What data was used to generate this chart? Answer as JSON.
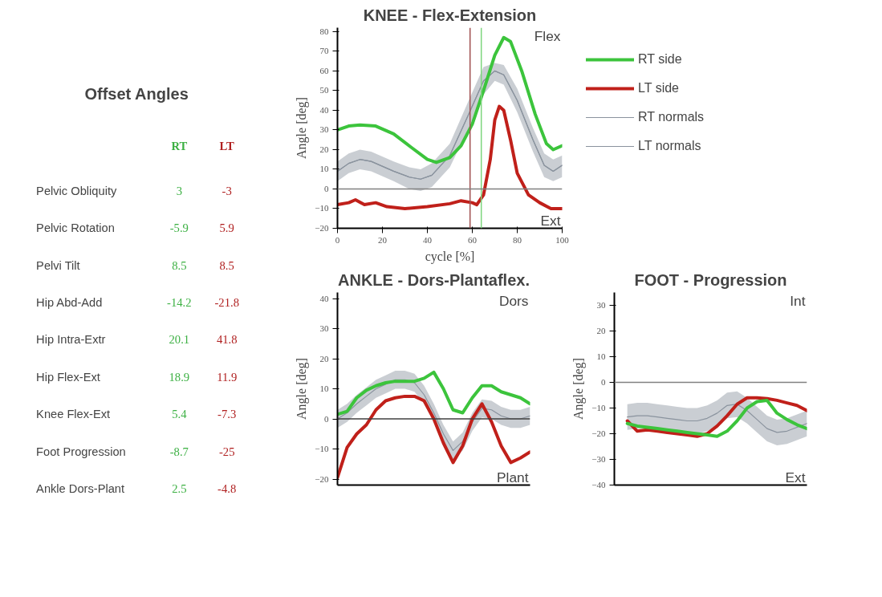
{
  "chart_data": [
    {
      "type": "other",
      "title": "Offset Angles",
      "categories": [
        "Pelvic Obliquity",
        "Pelvic Rotation",
        "Pelvi Tilt",
        "Hip Abd-Add",
        "Hip Intra-Extr",
        "Hip Flex-Ext",
        "Knee Flex-Ext",
        "Foot Progression",
        "Ankle Dors-Plant"
      ],
      "series": [
        {
          "name": "RT",
          "color": "#3cb043",
          "values": [
            3,
            -5.9,
            8.5,
            -14.2,
            20.1,
            18.9,
            5.4,
            -8.7,
            2.5
          ]
        },
        {
          "name": "LT",
          "color": "#b02020",
          "values": [
            -3,
            5.9,
            8.5,
            -21.8,
            41.8,
            11.9,
            -7.3,
            -25,
            -4.8
          ]
        }
      ],
      "data_labels": true
    },
    {
      "type": "line",
      "title": "KNEE - Flex-Extension",
      "xlabel": "cycle [%]",
      "ylabel": "Angle [deg]",
      "xlim": [
        0,
        100
      ],
      "ylim": [
        -20,
        82
      ],
      "xticks": [
        0,
        20,
        40,
        60,
        80,
        100
      ],
      "yticks": [
        -20,
        -10,
        0,
        10,
        20,
        30,
        40,
        50,
        60,
        70,
        80
      ],
      "grid": false,
      "legend": "right",
      "annotations": [
        "Flex",
        "Ext"
      ],
      "ref_lines": [
        {
          "axis": "x",
          "value": 59,
          "color": "#a05050"
        },
        {
          "axis": "x",
          "value": 64,
          "color": "#7ed67e"
        },
        {
          "axis": "y",
          "value": 0,
          "color": "#808080"
        }
      ],
      "series": [
        {
          "name": "RT side",
          "color": "#3cc43c",
          "x": [
            0,
            5,
            10,
            17,
            25,
            33,
            40,
            44,
            50,
            55,
            60,
            65,
            70,
            74,
            77,
            82,
            88,
            93,
            96,
            100
          ],
          "values": [
            30,
            32,
            32.5,
            32,
            28,
            21,
            15,
            13.5,
            16,
            22,
            33,
            50,
            68,
            77,
            75,
            60,
            38,
            23,
            20,
            22
          ]
        },
        {
          "name": "LT side",
          "color": "#c0201a",
          "x": [
            0,
            5,
            8,
            12,
            17,
            22,
            30,
            40,
            50,
            55,
            60,
            62,
            65,
            68,
            70,
            72,
            74,
            77,
            80,
            85,
            90,
            95,
            100
          ],
          "values": [
            -8,
            -7,
            -5.5,
            -8,
            -7,
            -9,
            -10,
            -9,
            -7.5,
            -6,
            -7,
            -8,
            -3,
            15,
            35,
            42,
            40,
            25,
            8,
            -3,
            -7,
            -10,
            -10
          ]
        },
        {
          "name": "RT normals",
          "color": "#8a939e",
          "x": [
            0,
            5,
            10,
            15,
            25,
            32,
            37,
            42,
            50,
            58,
            65,
            70,
            74,
            80,
            87,
            92,
            96,
            100
          ],
          "values": [
            9,
            13,
            15,
            14,
            9,
            6,
            5,
            7,
            17,
            37,
            55,
            60,
            58,
            45,
            25,
            12,
            9,
            12
          ],
          "lower": [
            4,
            8,
            10,
            9,
            4,
            0,
            -1,
            1,
            11,
            30,
            48,
            55,
            53,
            39,
            19,
            6,
            4,
            6
          ],
          "upper": [
            14,
            18,
            20,
            19,
            14,
            11,
            10,
            13,
            23,
            44,
            62,
            64,
            63,
            51,
            31,
            18,
            15,
            17
          ]
        },
        {
          "name": "LT normals",
          "color": "#8a939e",
          "x": [
            0,
            5,
            10,
            15,
            25,
            32,
            37,
            42,
            50,
            58,
            65,
            70,
            74,
            80,
            87,
            92,
            96,
            100
          ],
          "values": [
            9,
            13,
            15,
            14,
            9,
            6,
            5,
            7,
            17,
            37,
            55,
            60,
            58,
            45,
            25,
            12,
            9,
            12
          ]
        }
      ]
    },
    {
      "type": "line",
      "title": "ANKLE - Dors-Plantaflex.",
      "ylabel": "Angle [deg]",
      "categories": [
        null,
        null,
        null,
        null,
        null,
        null,
        null,
        null,
        null,
        null,
        null,
        null,
        null,
        null,
        null,
        null,
        null,
        null,
        null,
        null,
        null
      ],
      "ylim": [
        -22,
        42
      ],
      "yticks": [
        -20,
        -10,
        0,
        10,
        20,
        30,
        40
      ],
      "tick_labels": "y",
      "grid": false,
      "annotations": [
        "Dors",
        "Plant"
      ],
      "ref_lines": [
        {
          "axis": "y",
          "value": 0,
          "color": "#404040"
        }
      ],
      "series": [
        {
          "color": "#3cc43c",
          "values": [
            1.5,
            2.5,
            7,
            9.5,
            11,
            12,
            12.5,
            12.5,
            12.5,
            13.5,
            15.5,
            10,
            3,
            2,
            7,
            11,
            11,
            9,
            8,
            7,
            5
          ]
        },
        {
          "color": "#c0201a",
          "values": [
            -19.5,
            -9.5,
            -5,
            -2,
            3,
            6,
            7,
            7.5,
            7.5,
            6,
            0,
            -8,
            -14.5,
            -9,
            0,
            5,
            -1,
            -9,
            -14.5,
            -13,
            -11
          ]
        },
        {
          "color": "#8a939e",
          "values": [
            0,
            2,
            5,
            7.5,
            10,
            11.5,
            13,
            13,
            12,
            8,
            2,
            -5,
            -10.5,
            -7.5,
            -1,
            3.5,
            3,
            1,
            0,
            0,
            1
          ],
          "lower": [
            -3,
            -1,
            2,
            4.5,
            7,
            8.5,
            10,
            10,
            9,
            5,
            -1,
            -8,
            -13.5,
            -10.5,
            -4,
            0.5,
            0,
            -2,
            -3,
            -3,
            -2
          ],
          "upper": [
            3,
            5,
            8,
            10.5,
            13,
            14.5,
            16,
            16,
            15,
            11,
            5,
            -2,
            -7.5,
            -4.5,
            2,
            6.5,
            6,
            4,
            3,
            3,
            4
          ]
        }
      ]
    },
    {
      "type": "line",
      "title": "FOOT - Progression",
      "ylabel": "Angle [deg]",
      "categories": [
        null,
        null,
        null,
        null,
        null,
        null,
        null,
        null,
        null,
        null,
        null,
        null,
        null,
        null,
        null,
        null,
        null,
        null,
        null
      ],
      "ylim": [
        -40,
        35
      ],
      "yticks": [
        -40,
        -30,
        -20,
        -10,
        0,
        10,
        20,
        30
      ],
      "tick_labels": "y",
      "grid": false,
      "annotations": [
        "Int",
        "Ext"
      ],
      "ref_lines": [
        {
          "axis": "y",
          "value": 0,
          "color": "#808080"
        }
      ],
      "series": [
        {
          "color": "#3cc43c",
          "values": [
            -16,
            -17,
            -17.5,
            -18,
            -18.5,
            -19,
            -19.5,
            -20,
            -20.5,
            -21,
            -19,
            -15,
            -10,
            -7.5,
            -7,
            -12,
            -14.5,
            -16.5,
            -18
          ]
        },
        {
          "color": "#c0201a",
          "values": [
            -15,
            -19,
            -18.5,
            -19,
            -19.5,
            -20,
            -20.5,
            -21,
            -20,
            -17,
            -13,
            -8.5,
            -6,
            -6,
            -6.3,
            -7,
            -8,
            -9,
            -11
          ]
        },
        {
          "color": "#8a939e",
          "values": [
            -13.5,
            -13,
            -13,
            -13.5,
            -14,
            -14.5,
            -15,
            -15,
            -14,
            -12,
            -9,
            -8.5,
            -11,
            -14.5,
            -18,
            -19.5,
            -19,
            -17.5,
            -16
          ],
          "lower": [
            -18.5,
            -18,
            -18,
            -18.5,
            -19,
            -19.5,
            -20,
            -20,
            -19,
            -17,
            -14,
            -13.5,
            -16,
            -19.5,
            -23,
            -24.5,
            -24,
            -22.5,
            -21
          ],
          "upper": [
            -8.5,
            -8,
            -8,
            -8.5,
            -9,
            -9.5,
            -10,
            -10,
            -9,
            -7,
            -4,
            -3.5,
            -6,
            -9.5,
            -13,
            -14.5,
            -14,
            -12.5,
            -11
          ]
        }
      ]
    }
  ]
}
